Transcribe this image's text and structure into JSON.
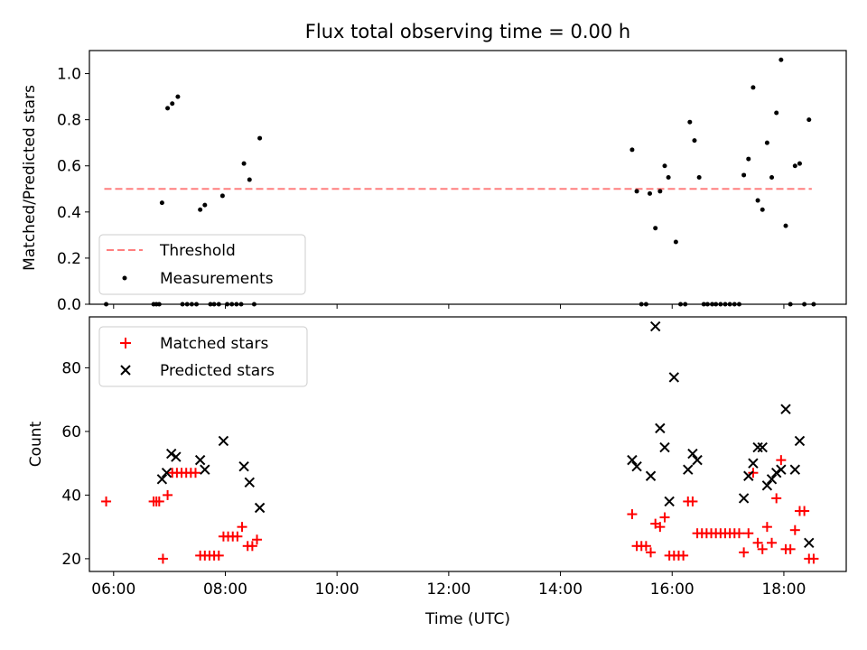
{
  "chart_data": [
    {
      "type": "scatter",
      "title": "Flux total observing time = 0.00 h",
      "xlabel": "",
      "ylabel": "Matched/Predicted stars",
      "xlim": [
        "05:34",
        "19:07"
      ],
      "ylim": [
        0,
        1.1
      ],
      "yticks": [
        0.0,
        0.2,
        0.4,
        0.6,
        0.8,
        1.0
      ],
      "ytick_labels": [
        "0.0",
        "0.2",
        "0.4",
        "0.6",
        "0.8",
        "1.0"
      ],
      "xticks": [
        "06:00",
        "08:00",
        "10:00",
        "12:00",
        "14:00",
        "16:00",
        "18:00"
      ],
      "show_xtick_labels": false,
      "grid": false,
      "legend_position": "lower-left",
      "threshold": {
        "name": "Threshold",
        "value": 0.5,
        "x_range": [
          "05:50",
          "18:30"
        ],
        "color": "#ff7f7f",
        "style": "dashed"
      },
      "series": [
        {
          "name": "Measurements",
          "marker": "dot",
          "color": "#000000",
          "points": [
            [
              "05:52",
              0.0
            ],
            [
              "06:43",
              0.0
            ],
            [
              "06:46",
              0.0
            ],
            [
              "06:49",
              0.0
            ],
            [
              "06:52",
              0.44
            ],
            [
              "06:58",
              0.85
            ],
            [
              "07:03",
              0.87
            ],
            [
              "07:09",
              0.9
            ],
            [
              "07:14",
              0.0
            ],
            [
              "07:19",
              0.0
            ],
            [
              "07:24",
              0.0
            ],
            [
              "07:29",
              0.0
            ],
            [
              "07:33",
              0.41
            ],
            [
              "07:38",
              0.43
            ],
            [
              "07:44",
              0.0
            ],
            [
              "07:48",
              0.0
            ],
            [
              "07:53",
              0.0
            ],
            [
              "07:57",
              0.47
            ],
            [
              "08:02",
              0.0
            ],
            [
              "08:07",
              0.0
            ],
            [
              "08:12",
              0.0
            ],
            [
              "08:17",
              0.0
            ],
            [
              "08:20",
              0.61
            ],
            [
              "08:26",
              0.54
            ],
            [
              "08:31",
              0.0
            ],
            [
              "08:37",
              0.72
            ],
            [
              "15:17",
              0.67
            ],
            [
              "15:22",
              0.49
            ],
            [
              "15:27",
              0.0
            ],
            [
              "15:32",
              0.0
            ],
            [
              "15:36",
              0.48
            ],
            [
              "15:42",
              0.33
            ],
            [
              "15:47",
              0.49
            ],
            [
              "15:52",
              0.6
            ],
            [
              "15:56",
              0.55
            ],
            [
              "16:04",
              0.27
            ],
            [
              "16:09",
              0.0
            ],
            [
              "16:14",
              0.0
            ],
            [
              "16:19",
              0.79
            ],
            [
              "16:24",
              0.71
            ],
            [
              "16:29",
              0.55
            ],
            [
              "16:34",
              0.0
            ],
            [
              "16:38",
              0.0
            ],
            [
              "16:43",
              0.0
            ],
            [
              "16:47",
              0.0
            ],
            [
              "16:52",
              0.0
            ],
            [
              "16:57",
              0.0
            ],
            [
              "17:02",
              0.0
            ],
            [
              "17:07",
              0.0
            ],
            [
              "17:12",
              0.0
            ],
            [
              "17:17",
              0.56
            ],
            [
              "17:22",
              0.63
            ],
            [
              "17:27",
              0.94
            ],
            [
              "17:32",
              0.45
            ],
            [
              "17:37",
              0.41
            ],
            [
              "17:42",
              0.7
            ],
            [
              "17:47",
              0.55
            ],
            [
              "17:52",
              0.83
            ],
            [
              "17:57",
              1.06
            ],
            [
              "18:02",
              0.34
            ],
            [
              "18:07",
              0.0
            ],
            [
              "18:12",
              0.6
            ],
            [
              "18:17",
              0.61
            ],
            [
              "18:22",
              0.0
            ],
            [
              "18:27",
              0.8
            ],
            [
              "18:32",
              0.0
            ]
          ]
        }
      ]
    },
    {
      "type": "scatter",
      "title": "",
      "xlabel": "Time (UTC)",
      "ylabel": "Count",
      "xlim": [
        "05:34",
        "19:07"
      ],
      "ylim": [
        16,
        96
      ],
      "yticks": [
        20,
        40,
        60,
        80
      ],
      "ytick_labels": [
        "20",
        "40",
        "60",
        "80"
      ],
      "xticks": [
        "06:00",
        "08:00",
        "10:00",
        "12:00",
        "14:00",
        "16:00",
        "18:00"
      ],
      "show_xtick_labels": true,
      "grid": false,
      "legend_position": "upper-left",
      "series": [
        {
          "name": "Matched stars",
          "marker": "plus",
          "color": "#ff0000",
          "points": [
            [
              "05:52",
              38
            ],
            [
              "06:43",
              38
            ],
            [
              "06:46",
              38
            ],
            [
              "06:49",
              38
            ],
            [
              "06:53",
              20
            ],
            [
              "06:58",
              40
            ],
            [
              "07:03",
              47
            ],
            [
              "07:08",
              47
            ],
            [
              "07:13",
              47
            ],
            [
              "07:18",
              47
            ],
            [
              "07:23",
              47
            ],
            [
              "07:28",
              47
            ],
            [
              "07:33",
              21
            ],
            [
              "07:38",
              21
            ],
            [
              "07:43",
              21
            ],
            [
              "07:48",
              21
            ],
            [
              "07:53",
              21
            ],
            [
              "07:58",
              27
            ],
            [
              "08:03",
              27
            ],
            [
              "08:08",
              27
            ],
            [
              "08:13",
              27
            ],
            [
              "08:18",
              30
            ],
            [
              "08:24",
              24
            ],
            [
              "08:29",
              24
            ],
            [
              "08:34",
              26
            ],
            [
              "15:17",
              34
            ],
            [
              "15:22",
              24
            ],
            [
              "15:27",
              24
            ],
            [
              "15:32",
              24
            ],
            [
              "15:37",
              22
            ],
            [
              "15:42",
              31
            ],
            [
              "15:47",
              30
            ],
            [
              "15:52",
              33
            ],
            [
              "15:57",
              21
            ],
            [
              "16:02",
              21
            ],
            [
              "16:07",
              21
            ],
            [
              "16:12",
              21
            ],
            [
              "16:17",
              38
            ],
            [
              "16:22",
              38
            ],
            [
              "16:27",
              28
            ],
            [
              "16:32",
              28
            ],
            [
              "16:37",
              28
            ],
            [
              "16:42",
              28
            ],
            [
              "16:47",
              28
            ],
            [
              "16:52",
              28
            ],
            [
              "16:57",
              28
            ],
            [
              "17:02",
              28
            ],
            [
              "17:07",
              28
            ],
            [
              "17:12",
              28
            ],
            [
              "17:17",
              22
            ],
            [
              "17:22",
              28
            ],
            [
              "17:27",
              47
            ],
            [
              "17:32",
              25
            ],
            [
              "17:37",
              23
            ],
            [
              "17:42",
              30
            ],
            [
              "17:47",
              25
            ],
            [
              "17:52",
              39
            ],
            [
              "17:57",
              51
            ],
            [
              "18:02",
              23
            ],
            [
              "18:07",
              23
            ],
            [
              "18:12",
              29
            ],
            [
              "18:17",
              35
            ],
            [
              "18:22",
              35
            ],
            [
              "18:27",
              20
            ],
            [
              "18:32",
              20
            ]
          ]
        },
        {
          "name": "Predicted stars",
          "marker": "x",
          "color": "#000000",
          "points": [
            [
              "06:52",
              45
            ],
            [
              "06:57",
              47
            ],
            [
              "07:02",
              53
            ],
            [
              "07:07",
              52
            ],
            [
              "07:33",
              51
            ],
            [
              "07:38",
              48
            ],
            [
              "07:58",
              57
            ],
            [
              "08:20",
              49
            ],
            [
              "08:26",
              44
            ],
            [
              "08:37",
              36
            ],
            [
              "15:17",
              51
            ],
            [
              "15:22",
              49
            ],
            [
              "15:37",
              46
            ],
            [
              "15:42",
              93
            ],
            [
              "15:47",
              61
            ],
            [
              "15:52",
              55
            ],
            [
              "15:57",
              38
            ],
            [
              "16:02",
              77
            ],
            [
              "16:17",
              48
            ],
            [
              "16:22",
              53
            ],
            [
              "16:27",
              51
            ],
            [
              "17:17",
              39
            ],
            [
              "17:22",
              46
            ],
            [
              "17:27",
              50
            ],
            [
              "17:32",
              55
            ],
            [
              "17:37",
              55
            ],
            [
              "17:42",
              43
            ],
            [
              "17:47",
              45
            ],
            [
              "17:52",
              47
            ],
            [
              "17:57",
              48
            ],
            [
              "18:02",
              67
            ],
            [
              "18:12",
              48
            ],
            [
              "18:17",
              57
            ],
            [
              "18:27",
              25
            ]
          ]
        }
      ]
    }
  ]
}
